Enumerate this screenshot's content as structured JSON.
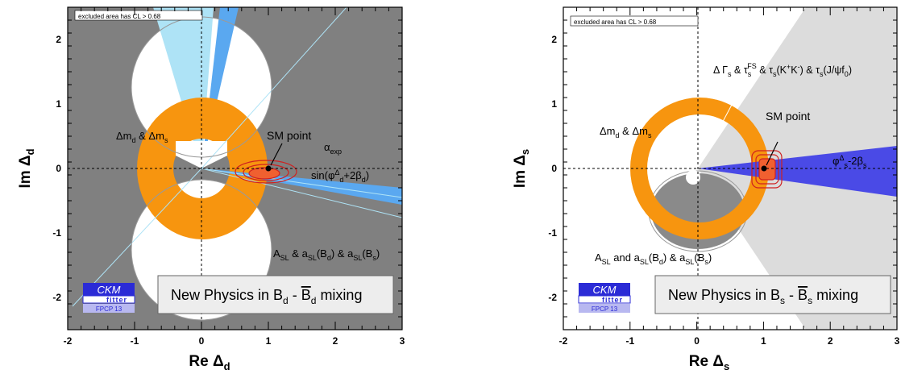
{
  "chart_data": [
    {
      "type": "contour",
      "xlim": [
        -2,
        3
      ],
      "ylim": [
        -2.5,
        2.5
      ],
      "xticks": [
        "-2",
        "-1",
        "0",
        "1",
        "2",
        "3"
      ],
      "yticks": [
        "-2",
        "-1",
        "0",
        "1",
        "2"
      ],
      "xlabel_main": "Re Δ",
      "xlabel_sub": "d",
      "ylabel_main": "Im Δ",
      "ylabel_sub": "d",
      "legend_box": "excluded area has CL > 0.68",
      "sm_point": {
        "x": 1,
        "y": 0,
        "label": "SM point"
      },
      "constraints": {
        "dm": {
          "main": "Δm",
          "s1": "d",
          "mid": " & Δm",
          "s2": "s"
        },
        "alpha": {
          "main": "α",
          "sub": "exp"
        },
        "sin": {
          "pre": "sin(φ",
          "sup": "Δ",
          "sub": "d",
          "post": "+2β",
          "sub2": "d",
          "end": ")"
        },
        "asl": {
          "p1": "A",
          "s1": "SL",
          "p2": " & a",
          "s2": "SL",
          "p3": "(B",
          "s3": "d",
          "p4": ") & a",
          "s4": "SL",
          "p5": "(B",
          "s5": "s",
          "p6": ")"
        }
      },
      "title_box": {
        "pre": "New Physics in B",
        "sub1": "d",
        "mid": " - ",
        "bbar": "B",
        "sub2": "d",
        "post": " mixing"
      },
      "logo": {
        "line1": "CKM",
        "line2": "fitter",
        "line3": "FPCP 13"
      }
    },
    {
      "type": "contour",
      "xlim": [
        -2,
        3
      ],
      "ylim": [
        -2.5,
        2.5
      ],
      "xticks": [
        "-2",
        "-1",
        "0",
        "1",
        "2",
        "3"
      ],
      "yticks": [
        "-2",
        "-1",
        "0",
        "1",
        "2"
      ],
      "xlabel_main": "Re Δ",
      "xlabel_sub": "s",
      "ylabel_main": "Im Δ",
      "ylabel_sub": "s",
      "legend_box": "excluded area has CL > 0.68",
      "sm_point": {
        "x": 1,
        "y": 0,
        "label": "SM point"
      },
      "constraints": {
        "dm": {
          "main": "Δm",
          "s1": "d",
          "mid": " & Δm",
          "s2": "s"
        },
        "gamma": {
          "p1": "Δ Γ",
          "s1": "s",
          "p2": " & τ",
          "s2": "s",
          "sup2": "FS",
          "p3": " & τ",
          "s3": "s",
          "p4": "(K",
          "sup4": "+",
          "p5": "K",
          "sup5": "-",
          "p6": ") & τ",
          "s6": "s",
          "p7": "(J/ψf",
          "s7": "0",
          "p8": ")"
        },
        "phi": {
          "p1": "φ",
          "sup1": "Δ",
          "s1": "s",
          "p2": "-2β",
          "s2": "s"
        },
        "asl": {
          "p1": "A",
          "s1": "SL",
          "p2": " and a",
          "s2": "SL",
          "p3": "(B",
          "s3": "d",
          "p4": ") & a",
          "s4": "SL",
          "p5": "(B",
          "s5": "s",
          "p6": ")"
        }
      },
      "title_box": {
        "pre": "New Physics in B",
        "sub1": "s",
        "mid": " - ",
        "bbar": "B",
        "sub2": "s",
        "post": " mixing"
      },
      "logo": {
        "line1": "CKM",
        "line2": "fitter",
        "line3": "FPCP 13"
      }
    }
  ]
}
